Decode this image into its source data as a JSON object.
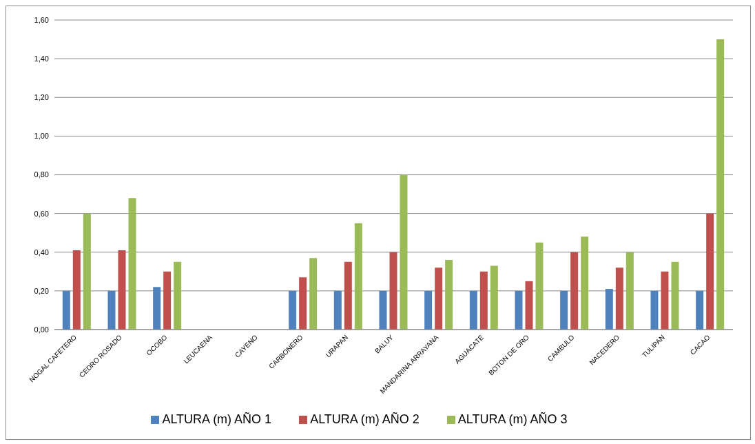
{
  "chart_data": {
    "type": "bar",
    "categories": [
      "NOGAL CAFETERO",
      "CEDRO ROSADO",
      "OCOBO",
      "LEUCAENA",
      "CAYENO",
      "CARBONERO",
      "URAPAN",
      "BALUY",
      "MANDARINA ARRAYANA",
      "AGUACATE",
      "BOTON DE ORO",
      "CAMBULO",
      "NACEDERO",
      "TULIPAN",
      "CACAO"
    ],
    "series": [
      {
        "name": "ALTURA (m) AÑO 1",
        "color": "#4f81bd",
        "values": [
          0.2,
          0.2,
          0.22,
          null,
          null,
          0.2,
          0.2,
          0.2,
          0.2,
          0.2,
          0.2,
          0.2,
          0.21,
          0.2,
          0.2
        ]
      },
      {
        "name": "ALTURA (m) AÑO 2",
        "color": "#c0504d",
        "values": [
          0.41,
          0.41,
          0.3,
          null,
          null,
          0.27,
          0.35,
          0.4,
          0.32,
          0.3,
          0.25,
          0.4,
          0.32,
          0.3,
          0.6
        ]
      },
      {
        "name": "ALTURA (m) AÑO 3",
        "color": "#9bbb59",
        "values": [
          0.6,
          0.68,
          0.35,
          null,
          null,
          0.37,
          0.55,
          0.8,
          0.36,
          0.33,
          0.45,
          0.48,
          0.4,
          0.35,
          1.5
        ]
      }
    ],
    "ylim": [
      0,
      1.6
    ],
    "yticks": [
      {
        "value": 0,
        "label": "0,00"
      },
      {
        "value": 0.2,
        "label": "0,20"
      },
      {
        "value": 0.4,
        "label": "0,40"
      },
      {
        "value": 0.6,
        "label": "0,60"
      },
      {
        "value": 0.8,
        "label": "0,80"
      },
      {
        "value": 1,
        "label": "1,00"
      },
      {
        "value": 1.2,
        "label": "1,20"
      },
      {
        "value": 1.4,
        "label": "1,40"
      },
      {
        "value": 1.6,
        "label": "1,60"
      }
    ],
    "grid": "y",
    "legend": "bottom"
  }
}
